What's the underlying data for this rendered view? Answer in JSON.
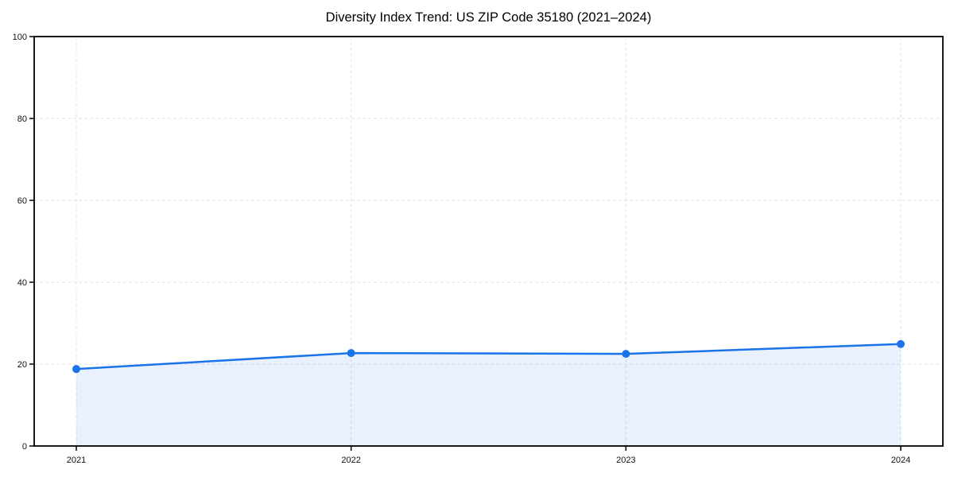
{
  "chart_data": {
    "type": "line",
    "title": "Diversity Index Trend: US ZIP Code 35180 (2021–2024)",
    "x": [
      "2021",
      "2022",
      "2023",
      "2024"
    ],
    "series": [
      {
        "name": "Diversity Index",
        "values": [
          18.8,
          22.7,
          22.5,
          24.9
        ]
      }
    ],
    "xlabel": "",
    "ylabel": "",
    "ylim": [
      0,
      100
    ],
    "yticks": [
      0,
      20,
      40,
      60,
      80,
      100
    ],
    "grid": "dashed-both-axes",
    "legend": "none",
    "area_fill": true,
    "colors": {
      "line": "#1a73e8",
      "marker": "#1a73e8",
      "area_fill": "rgba(26,115,232,0.10)",
      "gridline": "#e2e2e2",
      "axis_spine": "#000000",
      "tick_label": "#111111",
      "title_text": "#000000",
      "background": "#ffffff"
    }
  }
}
